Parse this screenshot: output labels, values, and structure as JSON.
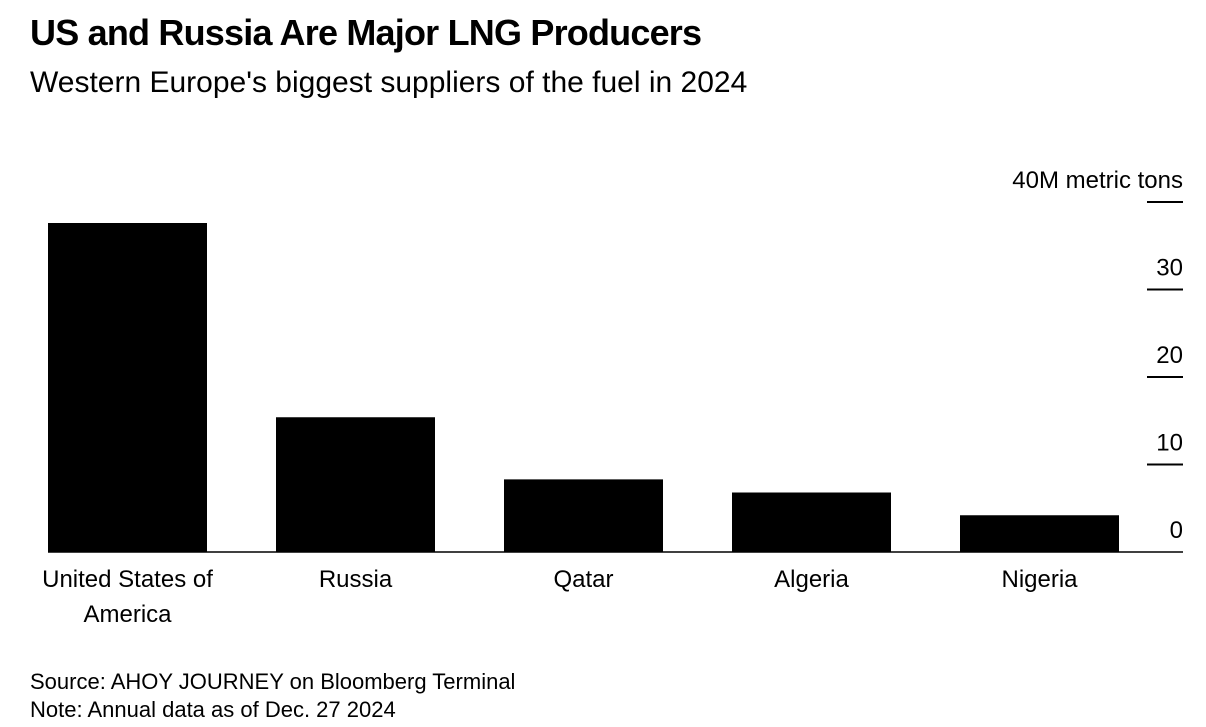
{
  "header": {
    "title": "US and Russia Are Major LNG Producers",
    "subtitle": "Western Europe's biggest suppliers of the fuel in 2024"
  },
  "footer": {
    "source": "Source: AHOY JOURNEY on Bloomberg Terminal",
    "note": "Note: Annual data as of Dec. 27 2024"
  },
  "colors": {
    "bar": "#000000",
    "text": "#000000",
    "background": "#ffffff"
  },
  "chart_data": {
    "type": "bar",
    "title": "US and Russia Are Major LNG Producers",
    "subtitle": "Western Europe's biggest suppliers of the fuel in 2024",
    "categories": [
      [
        "United States of",
        "America"
      ],
      [
        "Russia"
      ],
      [
        "Qatar"
      ],
      [
        "Algeria"
      ],
      [
        "Nigeria"
      ]
    ],
    "values": [
      37.6,
      15.4,
      8.3,
      6.8,
      4.2
    ],
    "ylim": [
      0,
      40
    ],
    "yticks": [
      0,
      10,
      20,
      30,
      40
    ],
    "ytick_labels": [
      "0",
      "10",
      "20",
      "30",
      "40M metric tons"
    ],
    "ylabel": "M metric tons",
    "xlabel": "",
    "y_axis_side": "right",
    "grid": false,
    "legend": "none"
  }
}
